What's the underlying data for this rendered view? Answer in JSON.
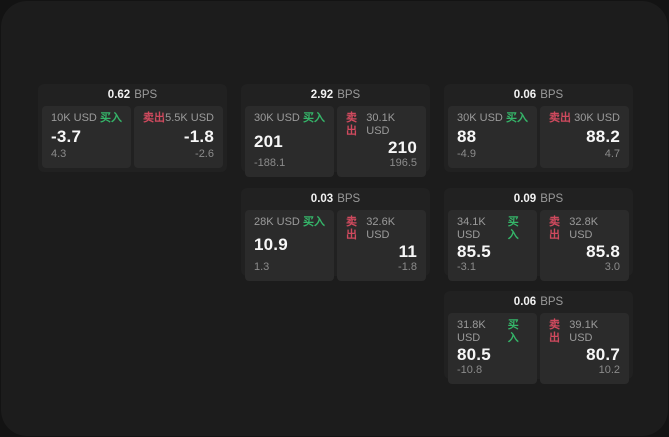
{
  "labels": {
    "buy": "买入",
    "sell": "卖出",
    "bps_unit": "BPS"
  },
  "colors": {
    "buy": "#35b569",
    "sell": "#d04a5e",
    "panel_bg": "#1c1c1c",
    "card_bg": "#212121",
    "subpanel_bg": "#2b2b2b"
  },
  "cards": [
    {
      "bps": "0.62",
      "col": 0,
      "row": 0,
      "buy": {
        "size": "10K USD",
        "price": "-3.7",
        "delta": "4.3"
      },
      "sell": {
        "size": "5.5K USD",
        "price": "-1.8",
        "delta": "-2.6"
      }
    },
    {
      "bps": "2.92",
      "col": 1,
      "row": 0,
      "buy": {
        "size": "30K USD",
        "price": "201",
        "delta": "-188.1"
      },
      "sell": {
        "size": "30.1K USD",
        "price": "210",
        "delta": "196.5"
      }
    },
    {
      "bps": "0.06",
      "col": 2,
      "row": 0,
      "buy": {
        "size": "30K USD",
        "price": "88",
        "delta": "-4.9"
      },
      "sell": {
        "size": "30K USD",
        "price": "88.2",
        "delta": "4.7"
      }
    },
    {
      "bps": "0.03",
      "col": 1,
      "row": 1,
      "buy": {
        "size": "28K USD",
        "price": "10.9",
        "delta": "1.3"
      },
      "sell": {
        "size": "32.6K USD",
        "price": "11",
        "delta": "-1.8"
      }
    },
    {
      "bps": "0.09",
      "col": 2,
      "row": 1,
      "buy": {
        "size": "34.1K USD",
        "price": "85.5",
        "delta": "-3.1"
      },
      "sell": {
        "size": "32.8K USD",
        "price": "85.8",
        "delta": "3.0"
      }
    },
    {
      "bps": "0.06",
      "col": 2,
      "row": 2,
      "buy": {
        "size": "31.8K USD",
        "price": "80.5",
        "delta": "-10.8"
      },
      "sell": {
        "size": "39.1K USD",
        "price": "80.7",
        "delta": "10.2"
      }
    }
  ]
}
